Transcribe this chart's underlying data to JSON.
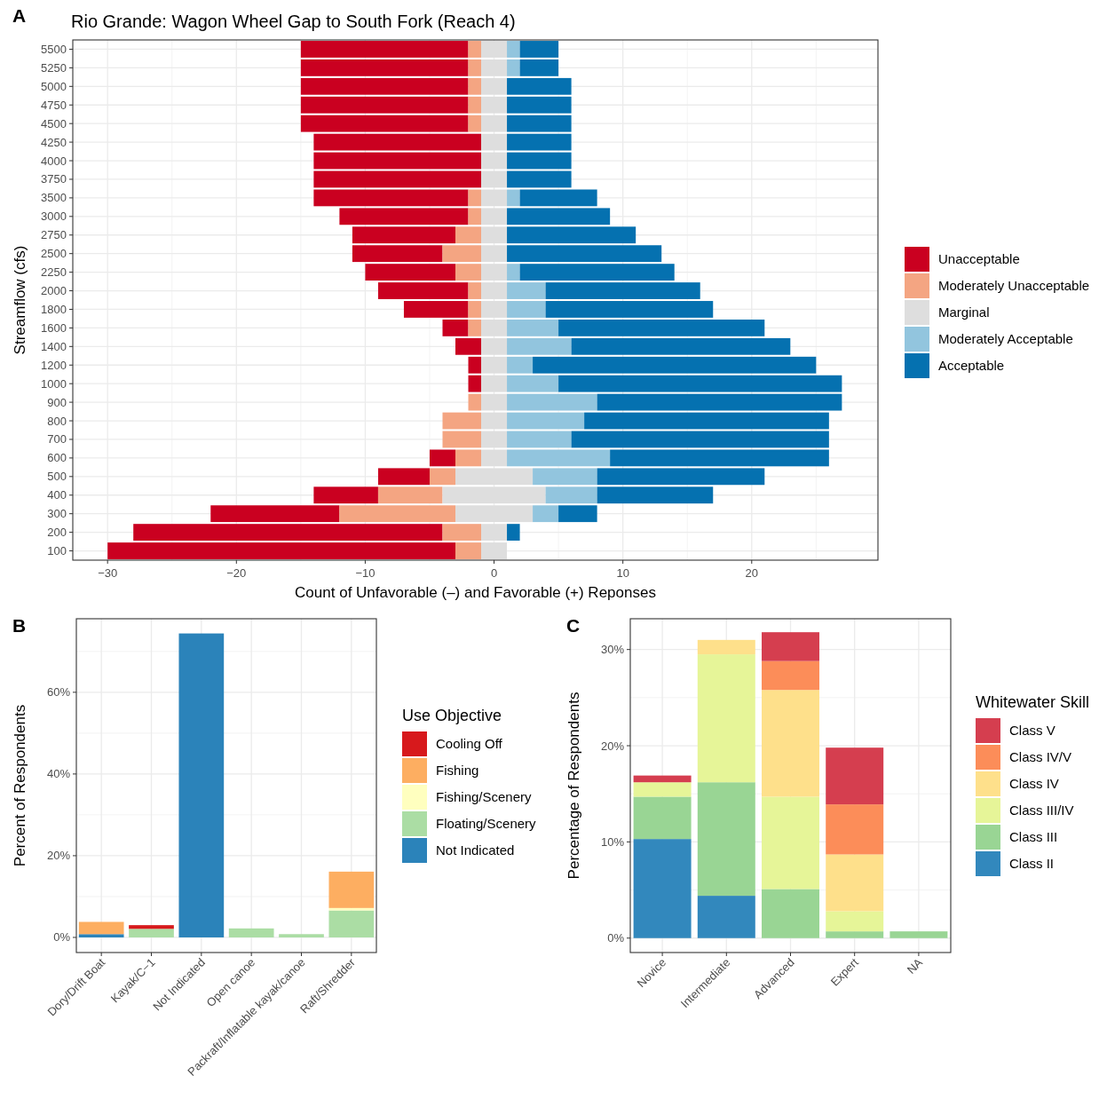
{
  "chart_data": [
    {
      "type": "bar",
      "orientation": "horizontal",
      "title": "Rio Grande: Wagon Wheel Gap to South Fork (Reach 4)",
      "xlabel": "Count of Unfavorable (–) and Favorable (+) Reponses",
      "ylabel": "Streamflow (cfs)",
      "annotations": [
        "A"
      ],
      "categories": [
        "5500",
        "5250",
        "5000",
        "4750",
        "4500",
        "4250",
        "4000",
        "3750",
        "3500",
        "3000",
        "2750",
        "2500",
        "2250",
        "2000",
        "1800",
        "1600",
        "1400",
        "1200",
        "1000",
        "900",
        "800",
        "700",
        "600",
        "500",
        "400",
        "300",
        "200",
        "100"
      ],
      "series": [
        {
          "name": "Unacceptable",
          "color": "#ca0020",
          "base": [
            -15,
            -15,
            -15,
            -15,
            -15,
            -14,
            -14,
            -14,
            -14,
            -12,
            -11,
            -11,
            -10,
            -9,
            -7,
            -4,
            -3,
            -2,
            -2,
            null,
            null,
            null,
            -5,
            -9,
            -14,
            -22,
            -28,
            -30
          ],
          "values": [
            13,
            13,
            13,
            13,
            13,
            13,
            13,
            13,
            12,
            10,
            8,
            7,
            7,
            7,
            5,
            2,
            2,
            1,
            1,
            null,
            null,
            null,
            2,
            4,
            5,
            10,
            24,
            27
          ]
        },
        {
          "name": "Moderately Unacceptable",
          "color": "#f4a582",
          "base": [
            -2,
            -2,
            -2,
            -2,
            -2,
            null,
            null,
            null,
            -2,
            -2,
            -3,
            -4,
            -3,
            -2,
            -2,
            -2,
            null,
            null,
            null,
            -2,
            -4,
            -4,
            -3,
            -5,
            -9,
            -12,
            -4,
            -3
          ],
          "values": [
            1,
            1,
            1,
            1,
            1,
            null,
            null,
            null,
            1,
            1,
            2,
            3,
            2,
            1,
            1,
            1,
            null,
            null,
            null,
            1,
            3,
            3,
            2,
            2,
            5,
            9,
            3,
            2
          ]
        },
        {
          "name": "Marginal",
          "color": "#dedede",
          "base": [
            -1,
            -1,
            -1,
            -1,
            -1,
            -1,
            -1,
            -1,
            -1,
            -1,
            -1,
            -1,
            -1,
            -1,
            -1,
            -1,
            -1,
            -1,
            -1,
            -1,
            -1,
            -1,
            -1,
            -3,
            -4,
            -3,
            -1,
            -1
          ],
          "values": [
            2,
            2,
            2,
            2,
            2,
            2,
            2,
            2,
            2,
            2,
            2,
            2,
            2,
            2,
            2,
            2,
            2,
            2,
            2,
            2,
            2,
            2,
            2,
            6,
            8,
            6,
            2,
            2
          ]
        },
        {
          "name": "Moderately Acceptable",
          "color": "#92c5de",
          "base": [
            1,
            1,
            null,
            null,
            null,
            null,
            null,
            null,
            1,
            null,
            null,
            null,
            1,
            1,
            1,
            1,
            1,
            1,
            1,
            1,
            1,
            1,
            1,
            3,
            4,
            3,
            null,
            null
          ],
          "values": [
            1,
            1,
            null,
            null,
            null,
            null,
            null,
            null,
            1,
            null,
            null,
            null,
            1,
            3,
            3,
            4,
            5,
            2,
            4,
            7,
            6,
            5,
            8,
            5,
            4,
            2,
            null,
            null
          ]
        },
        {
          "name": "Acceptable",
          "color": "#0571b0",
          "base": [
            2,
            2,
            1,
            1,
            1,
            1,
            1,
            1,
            2,
            1,
            1,
            1,
            2,
            4,
            4,
            5,
            6,
            3,
            5,
            8,
            7,
            6,
            9,
            8,
            8,
            5,
            1,
            null
          ],
          "values": [
            3,
            3,
            5,
            5,
            5,
            5,
            5,
            5,
            6,
            8,
            10,
            12,
            12,
            12,
            13,
            16,
            17,
            22,
            22,
            19,
            19,
            20,
            17,
            13,
            9,
            3,
            1,
            null
          ]
        }
      ],
      "xlim": [
        -32.7,
        29.8
      ],
      "xticks": [
        {
          "value": -30,
          "label": "−30"
        },
        {
          "value": -20,
          "label": "−20"
        },
        {
          "value": -10,
          "label": "−10"
        },
        0,
        10,
        20
      ],
      "grid": true,
      "legend": "right"
    },
    {
      "type": "bar",
      "stacked": true,
      "ylabel": "Percent of Respondents",
      "legend_title": "Use Objective",
      "annotations": [
        "B"
      ],
      "categories": [
        "Dory/Drift Boat",
        "Kayak/C−1",
        "Not Indicated",
        "Open canoe",
        "Packraft/Inflatable kayak/canoe",
        "Raft/Shredder"
      ],
      "series": [
        {
          "name": "Not Indicated",
          "color": "#2b83ba",
          "values": [
            0.8,
            0,
            74.4,
            0,
            0,
            0
          ]
        },
        {
          "name": "Floating/Scenery",
          "color": "#abdda4",
          "values": [
            0,
            2.1,
            0,
            2.2,
            0.8,
            6.6
          ]
        },
        {
          "name": "Fishing/Scenery",
          "color": "#ffffbf",
          "values": [
            0,
            0,
            0,
            0,
            0,
            0.6
          ]
        },
        {
          "name": "Fishing",
          "color": "#fdae61",
          "values": [
            3.0,
            0,
            0,
            0,
            0,
            8.9
          ]
        },
        {
          "name": "Cooling Off",
          "color": "#d7191c",
          "values": [
            0,
            0.9,
            0,
            0,
            0,
            0
          ]
        }
      ],
      "ylim": [
        -3.7,
        78
      ],
      "yticks": [
        {
          "value": 0,
          "label": "0%"
        },
        {
          "value": 20,
          "label": "20%"
        },
        {
          "value": 40,
          "label": "40%"
        },
        {
          "value": 60,
          "label": "60%"
        }
      ],
      "grid": true,
      "legend": "right"
    },
    {
      "type": "bar",
      "stacked": true,
      "ylabel": "Percentage of Respondents",
      "legend_title": "Whitewater Skill",
      "annotations": [
        "C"
      ],
      "categories": [
        "Novice",
        "Intermediate",
        "Advanced",
        "Expert",
        "NA"
      ],
      "series": [
        {
          "name": "Class II",
          "color": "#3288bd",
          "values": [
            10.3,
            4.4,
            0,
            0,
            0
          ]
        },
        {
          "name": "Class III",
          "color": "#99d594",
          "values": [
            4.4,
            11.8,
            5.1,
            0.7,
            0.7
          ]
        },
        {
          "name": "Class III/IV",
          "color": "#e6f598",
          "values": [
            1.5,
            13.3,
            9.6,
            2.1,
            0
          ]
        },
        {
          "name": "Class IV",
          "color": "#fee08b",
          "values": [
            0,
            1.5,
            11.1,
            5.9,
            0
          ]
        },
        {
          "name": "Class IV/V",
          "color": "#fc8d59",
          "values": [
            0,
            0,
            3.0,
            5.2,
            0
          ]
        },
        {
          "name": "Class V",
          "color": "#d53e4f",
          "values": [
            0.7,
            0,
            3.0,
            5.9,
            0
          ]
        }
      ],
      "ylim": [
        -1.5,
        33.2
      ],
      "yticks": [
        {
          "value": 0,
          "label": "0%"
        },
        {
          "value": 10,
          "label": "10%"
        },
        {
          "value": 20,
          "label": "20%"
        },
        {
          "value": 30,
          "label": "30%"
        }
      ],
      "grid": true,
      "legend": "right"
    }
  ]
}
